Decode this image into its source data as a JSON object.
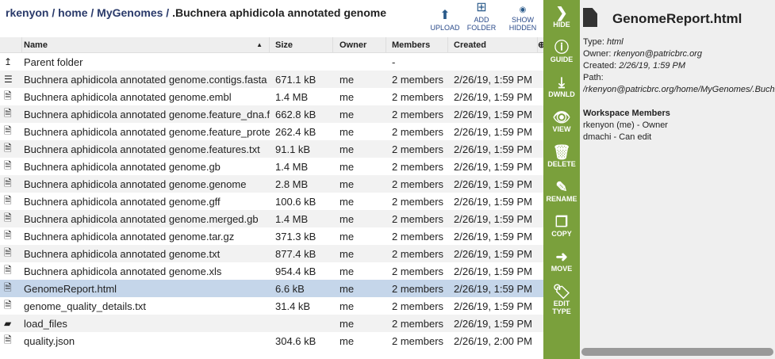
{
  "breadcrumb": {
    "parts": [
      "rkenyon",
      "home",
      "MyGenomes"
    ],
    "current": ".Buchnera aphidicola annotated genome"
  },
  "toolbar": {
    "upload": "UPLOAD",
    "add_folder_1": "ADD",
    "add_folder_2": "FOLDER",
    "show_hidden_1": "SHOW",
    "show_hidden_2": "HIDDEN"
  },
  "columns": {
    "name": "Name",
    "size": "Size",
    "owner": "Owner",
    "members": "Members",
    "created": "Created"
  },
  "parent": {
    "label": "Parent folder",
    "members": "-"
  },
  "rows": [
    {
      "icon": "contigs",
      "name": "Buchnera aphidicola annotated genome.contigs.fasta",
      "size": "671.1 kB",
      "owner": "me",
      "members": "2 members",
      "created": "2/26/19, 1:59 PM"
    },
    {
      "icon": "file",
      "name": "Buchnera aphidicola annotated genome.embl",
      "size": "1.4 MB",
      "owner": "me",
      "members": "2 members",
      "created": "2/26/19, 1:59 PM"
    },
    {
      "icon": "file",
      "name": "Buchnera aphidicola annotated genome.feature_dna.fasta",
      "size": "662.8 kB",
      "owner": "me",
      "members": "2 members",
      "created": "2/26/19, 1:59 PM"
    },
    {
      "icon": "file",
      "name": "Buchnera aphidicola annotated genome.feature_protein.fasta",
      "size": "262.4 kB",
      "owner": "me",
      "members": "2 members",
      "created": "2/26/19, 1:59 PM"
    },
    {
      "icon": "file",
      "name": "Buchnera aphidicola annotated genome.features.txt",
      "size": "91.1 kB",
      "owner": "me",
      "members": "2 members",
      "created": "2/26/19, 1:59 PM"
    },
    {
      "icon": "file",
      "name": "Buchnera aphidicola annotated genome.gb",
      "size": "1.4 MB",
      "owner": "me",
      "members": "2 members",
      "created": "2/26/19, 1:59 PM"
    },
    {
      "icon": "file",
      "name": "Buchnera aphidicola annotated genome.genome",
      "size": "2.8 MB",
      "owner": "me",
      "members": "2 members",
      "created": "2/26/19, 1:59 PM"
    },
    {
      "icon": "file",
      "name": "Buchnera aphidicola annotated genome.gff",
      "size": "100.6 kB",
      "owner": "me",
      "members": "2 members",
      "created": "2/26/19, 1:59 PM"
    },
    {
      "icon": "file",
      "name": "Buchnera aphidicola annotated genome.merged.gb",
      "size": "1.4 MB",
      "owner": "me",
      "members": "2 members",
      "created": "2/26/19, 1:59 PM"
    },
    {
      "icon": "file",
      "name": "Buchnera aphidicola annotated genome.tar.gz",
      "size": "371.3 kB",
      "owner": "me",
      "members": "2 members",
      "created": "2/26/19, 1:59 PM"
    },
    {
      "icon": "file",
      "name": "Buchnera aphidicola annotated genome.txt",
      "size": "877.4 kB",
      "owner": "me",
      "members": "2 members",
      "created": "2/26/19, 1:59 PM"
    },
    {
      "icon": "file",
      "name": "Buchnera aphidicola annotated genome.xls",
      "size": "954.4 kB",
      "owner": "me",
      "members": "2 members",
      "created": "2/26/19, 1:59 PM"
    },
    {
      "icon": "file",
      "name": "GenomeReport.html",
      "size": "6.6 kB",
      "owner": "me",
      "members": "2 members",
      "created": "2/26/19, 1:59 PM",
      "selected": true
    },
    {
      "icon": "file",
      "name": "genome_quality_details.txt",
      "size": "31.4 kB",
      "owner": "me",
      "members": "2 members",
      "created": "2/26/19, 1:59 PM"
    },
    {
      "icon": "folder",
      "name": "load_files",
      "size": "",
      "owner": "me",
      "members": "2 members",
      "created": "2/26/19, 1:59 PM"
    },
    {
      "icon": "file",
      "name": "quality.json",
      "size": "304.6 kB",
      "owner": "me",
      "members": "2 members",
      "created": "2/26/19, 2:00 PM"
    }
  ],
  "actions": [
    {
      "name": "hide",
      "label": "HIDE",
      "icon": "❯"
    },
    {
      "name": "guide",
      "label": "GUIDE",
      "icon": "ⓘ"
    },
    {
      "name": "download",
      "label": "DWNLD",
      "icon": "⤓"
    },
    {
      "name": "view",
      "label": "VIEW",
      "icon": "👁"
    },
    {
      "name": "delete",
      "label": "DELETE",
      "icon": "🗑"
    },
    {
      "name": "rename",
      "label": "RENAME",
      "icon": "✎"
    },
    {
      "name": "copy",
      "label": "COPY",
      "icon": "❐"
    },
    {
      "name": "move",
      "label": "MOVE",
      "icon": "➜"
    },
    {
      "name": "edit-type",
      "label": "EDIT TYPE",
      "icon": "🏷"
    }
  ],
  "panel": {
    "title": "GenomeReport.html",
    "type_label": "Type:",
    "type": "html",
    "owner_label": "Owner:",
    "owner": "rkenyon@patricbrc.org",
    "created_label": "Created:",
    "created": "2/26/19, 1:59 PM",
    "path_label": "Path:",
    "path": "/rkenyon@patricbrc.org/home/MyGenomes/.Buchnera aphidicola annotated genome/GenomeReport.html",
    "members_title": "Workspace Members",
    "members": [
      "rkenyon (me) - Owner",
      "dmachi - Can edit"
    ]
  },
  "colors": {
    "sidebar": "#7aa03c",
    "selected": "#c5d6ea"
  }
}
